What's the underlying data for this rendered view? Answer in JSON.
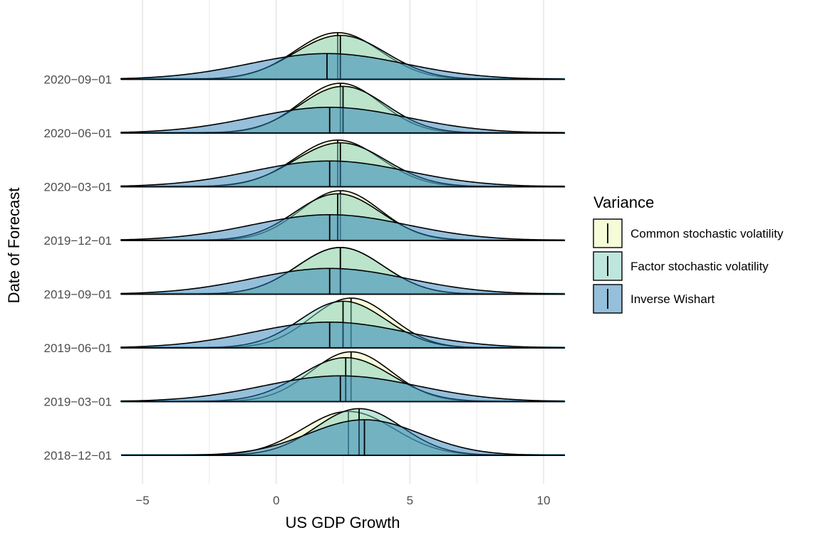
{
  "chart_data": {
    "type": "ridgeline-density",
    "title": "",
    "xlabel": "US GDP Growth",
    "ylabel": "Date of Forecast",
    "xlim": [
      -5.8,
      10.8
    ],
    "x_ticks": [
      -5,
      0,
      5,
      10
    ],
    "x_tick_labels": [
      "−5",
      "0",
      "5",
      "10"
    ],
    "categories": [
      "2018−12−01",
      "2019−03−01",
      "2019−06−01",
      "2019−09−01",
      "2019−12−01",
      "2020−03−01",
      "2020−06−01",
      "2020−09−01"
    ],
    "grid": true,
    "legend": {
      "title": "Variance",
      "position": "right",
      "entries": [
        "Common stochastic volatility",
        "Factor stochastic volatility",
        "Inverse Wishart"
      ]
    },
    "series": [
      {
        "name": "Common stochastic volatility",
        "color": "#edf8b1",
        "medians": [
          2.7,
          2.8,
          2.8,
          2.4,
          2.4,
          2.3,
          2.4,
          2.3
        ],
        "spread": [
          1.7,
          1.5,
          1.5,
          1.6,
          1.5,
          1.6,
          1.5,
          1.6
        ]
      },
      {
        "name": "Factor stochastic volatility",
        "color": "#7fcdbb",
        "medians": [
          3.1,
          2.6,
          2.5,
          2.4,
          2.3,
          2.4,
          2.5,
          2.4
        ],
        "spread": [
          1.6,
          1.7,
          1.6,
          1.6,
          1.6,
          1.7,
          1.6,
          1.7
        ]
      },
      {
        "name": "Inverse Wishart",
        "color": "#2c7fb8",
        "medians": [
          3.3,
          2.4,
          2.0,
          2.0,
          2.0,
          2.0,
          2.0,
          1.9
        ],
        "spread": [
          2.1,
          2.9,
          2.9,
          2.9,
          2.9,
          2.9,
          2.9,
          2.9
        ]
      }
    ]
  }
}
